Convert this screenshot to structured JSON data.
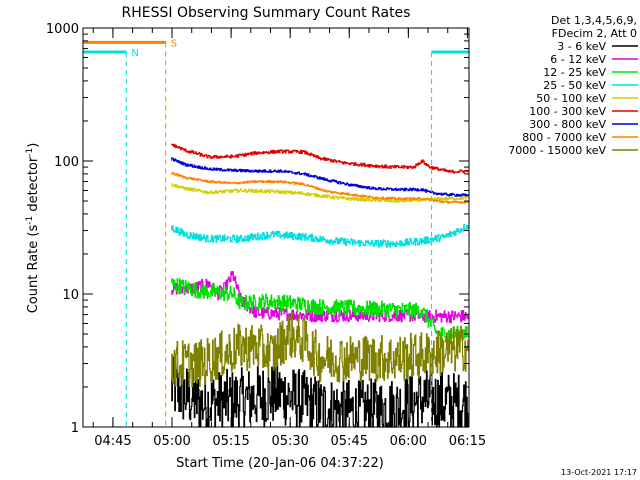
{
  "chart_data": {
    "type": "line",
    "title": "RHESSI Observing Summary Count Rates",
    "xlabel": "Start Time (20-Jan-06 04:37:22)",
    "ylabel_main": "Count Rate (s",
    "ylabel_sup1": "-1",
    "ylabel_mid": " detector",
    "ylabel_sup2": "-1",
    "ylabel_end": ")",
    "yscale": "log",
    "ylim": [
      1,
      1000
    ],
    "xlim_minutes": [
      0,
      98
    ],
    "x_tick_labels": [
      {
        "label": "04:45",
        "minute": 7.6
      },
      {
        "label": "05:00",
        "minute": 22.6
      },
      {
        "label": "05:15",
        "minute": 37.6
      },
      {
        "label": "05:30",
        "minute": 52.6
      },
      {
        "label": "05:45",
        "minute": 67.6
      },
      {
        "label": "06:00",
        "minute": 82.6
      },
      {
        "label": "06:15",
        "minute": 97.6
      }
    ],
    "y_tick_labels": [
      {
        "label": "1",
        "value": 1
      },
      {
        "label": "10",
        "value": 10
      },
      {
        "label": "100",
        "value": 100
      },
      {
        "label": "1000",
        "value": 1000
      }
    ],
    "legend_header": [
      "Det 1,3,4,5,6,9,",
      "FDecim 2, Att 0"
    ],
    "legend_placement": "right",
    "series": [
      {
        "name": "3 - 6 keV",
        "color": "#000000",
        "data": [
          [
            22,
            2
          ],
          [
            30,
            1.5
          ],
          [
            40,
            1.6
          ],
          [
            50,
            1.8
          ],
          [
            60,
            1.4
          ],
          [
            70,
            1.3
          ],
          [
            80,
            1.4
          ],
          [
            86,
            1.6
          ],
          [
            95,
            1.5
          ]
        ],
        "noise": 0.6
      },
      {
        "name": "6 - 12 keV",
        "color": "#e000e0",
        "data": [
          [
            22,
            11
          ],
          [
            28,
            11
          ],
          [
            32,
            12
          ],
          [
            34,
            10
          ],
          [
            36,
            11
          ],
          [
            38,
            14
          ],
          [
            40,
            9
          ],
          [
            44,
            7.2
          ],
          [
            50,
            7.1
          ],
          [
            58,
            6.9
          ],
          [
            66,
            6.9
          ],
          [
            76,
            6.9
          ],
          [
            84,
            6.9
          ],
          [
            86,
            6.8
          ]
        ],
        "noise": 0.12
      },
      {
        "name": "12 - 25 keV",
        "color": "#00e000",
        "data": [
          [
            22,
            12
          ],
          [
            30,
            10.5
          ],
          [
            38,
            10
          ],
          [
            40,
            8.5
          ],
          [
            46,
            8.8
          ],
          [
            52,
            8.6
          ],
          [
            60,
            8.0
          ],
          [
            70,
            7.8
          ],
          [
            80,
            7.6
          ],
          [
            86,
            7.5
          ],
          [
            90,
            5
          ],
          [
            98,
            5
          ]
        ],
        "noise": 0.15
      },
      {
        "name": "25 - 50 keV",
        "color": "#00e0e0",
        "data": [
          [
            22,
            32
          ],
          [
            26,
            28
          ],
          [
            32,
            26
          ],
          [
            40,
            26
          ],
          [
            48,
            28
          ],
          [
            56,
            27
          ],
          [
            64,
            25
          ],
          [
            72,
            24
          ],
          [
            80,
            24
          ],
          [
            86,
            25
          ],
          [
            92,
            27
          ],
          [
            98,
            33
          ]
        ],
        "noise": 0.07
      },
      {
        "name": "50 - 100 keV",
        "color": "#d0d000",
        "data": [
          [
            22,
            67
          ],
          [
            26,
            62
          ],
          [
            32,
            58
          ],
          [
            40,
            60
          ],
          [
            48,
            59
          ],
          [
            56,
            57
          ],
          [
            64,
            53
          ],
          [
            72,
            51
          ],
          [
            80,
            50
          ],
          [
            86,
            51
          ],
          [
            92,
            52
          ],
          [
            98,
            53
          ]
        ],
        "noise": 0.03
      },
      {
        "name": "100 - 300 keV",
        "color": "#e00000",
        "data": [
          [
            22,
            135
          ],
          [
            26,
            120
          ],
          [
            32,
            107
          ],
          [
            38,
            108
          ],
          [
            44,
            115
          ],
          [
            50,
            118
          ],
          [
            56,
            117
          ],
          [
            60,
            105
          ],
          [
            66,
            97
          ],
          [
            72,
            93
          ],
          [
            78,
            90
          ],
          [
            84,
            90
          ],
          [
            86,
            100
          ],
          [
            88,
            90
          ],
          [
            93,
            83
          ],
          [
            98,
            84
          ]
        ],
        "noise": 0.03
      },
      {
        "name": "300 - 800 keV",
        "color": "#0000d0",
        "data": [
          [
            22,
            105
          ],
          [
            26,
            94
          ],
          [
            32,
            87
          ],
          [
            38,
            85
          ],
          [
            44,
            84
          ],
          [
            50,
            84
          ],
          [
            56,
            80
          ],
          [
            62,
            72
          ],
          [
            68,
            66
          ],
          [
            74,
            62
          ],
          [
            80,
            61
          ],
          [
            86,
            61
          ],
          [
            88,
            58
          ],
          [
            92,
            56
          ],
          [
            98,
            55
          ]
        ],
        "noise": 0.025
      },
      {
        "name": "800 - 7000 keV",
        "color": "#ff8000",
        "data": [
          [
            22,
            82
          ],
          [
            26,
            75
          ],
          [
            32,
            70
          ],
          [
            38,
            68
          ],
          [
            44,
            70
          ],
          [
            50,
            70
          ],
          [
            56,
            67
          ],
          [
            62,
            59
          ],
          [
            68,
            56
          ],
          [
            74,
            53
          ],
          [
            80,
            52
          ],
          [
            86,
            52
          ],
          [
            92,
            49
          ],
          [
            98,
            49
          ]
        ],
        "noise": 0.02
      },
      {
        "name": "7000 - 15000 keV",
        "color": "#808000",
        "data": [
          [
            22,
            3
          ],
          [
            30,
            3
          ],
          [
            40,
            4
          ],
          [
            44,
            4
          ],
          [
            48,
            3.5
          ],
          [
            52,
            5
          ],
          [
            56,
            4.5
          ],
          [
            60,
            3.3
          ],
          [
            70,
            3.3
          ],
          [
            80,
            3.3
          ],
          [
            88,
            3.5
          ],
          [
            98,
            4
          ]
        ],
        "noise": 0.45
      }
    ],
    "flags": [
      {
        "label": "S",
        "color": "#ff8000",
        "segments": [
          [
            0,
            21
          ]
        ],
        "level": 780
      },
      {
        "label": "N",
        "color": "#00e0e0",
        "segments": [
          [
            0,
            11
          ],
          [
            88.5,
            98
          ]
        ],
        "level": 660
      }
    ]
  },
  "footer": {
    "timestamp": "13-Oct-2021 17:17"
  }
}
